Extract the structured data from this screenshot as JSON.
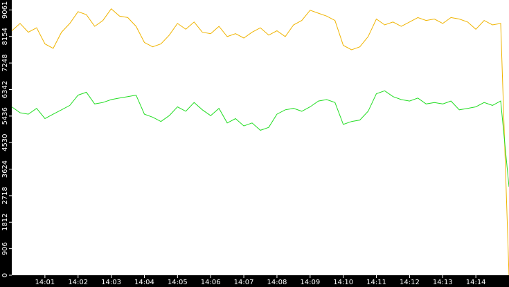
{
  "chart_data": {
    "type": "line",
    "x": [
      0,
      0.25,
      0.5,
      0.75,
      1,
      1.25,
      1.5,
      1.75,
      2,
      2.25,
      2.5,
      2.75,
      3,
      3.25,
      3.5,
      3.75,
      4,
      4.25,
      4.5,
      4.75,
      5,
      5.25,
      5.5,
      5.75,
      6,
      6.25,
      6.5,
      6.75,
      7,
      7.25,
      7.5,
      7.75,
      8,
      8.25,
      8.5,
      8.75,
      9,
      9.25,
      9.5,
      9.75,
      10,
      10.25,
      10.5,
      10.75,
      11,
      11.25,
      11.5,
      11.75,
      12,
      12.25,
      12.5,
      12.75,
      13,
      13.25,
      13.5,
      13.75,
      14,
      14.25,
      14.5,
      14.75,
      15
    ],
    "series": [
      {
        "color": "#f0b400",
        "values": [
          8350,
          8600,
          8300,
          8450,
          7900,
          7750,
          8300,
          8600,
          9000,
          8900,
          8500,
          8700,
          9100,
          8850,
          8800,
          8500,
          7950,
          7800,
          7900,
          8200,
          8600,
          8400,
          8650,
          8300,
          8250,
          8500,
          8150,
          8250,
          8100,
          8300,
          8450,
          8200,
          8350,
          8150,
          8550,
          8700,
          9050,
          8950,
          8850,
          8700,
          7850,
          7700,
          7800,
          8150,
          8750,
          8550,
          8650,
          8500,
          8650,
          8800,
          8700,
          8750,
          8600,
          8800,
          8750,
          8650,
          8400,
          8700,
          8550,
          8600,
          0
        ]
      },
      {
        "color": "#22dd22",
        "values": [
          5750,
          5550,
          5500,
          5700,
          5350,
          5500,
          5650,
          5800,
          6150,
          6250,
          5850,
          5900,
          6000,
          6050,
          6100,
          6150,
          5500,
          5400,
          5250,
          5450,
          5750,
          5600,
          5900,
          5650,
          5450,
          5700,
          5200,
          5350,
          5100,
          5200,
          4950,
          5050,
          5500,
          5650,
          5700,
          5600,
          5750,
          5950,
          6000,
          5900,
          5150,
          5250,
          5300,
          5600,
          6200,
          6300,
          6100,
          6000,
          5950,
          6050,
          5850,
          5900,
          5850,
          5950,
          5650,
          5700,
          5750,
          5900,
          5800,
          5950,
          3020
        ]
      }
    ],
    "xlim": [
      0,
      15
    ],
    "xticks": [
      {
        "value": 1,
        "label": "14:01"
      },
      {
        "value": 2,
        "label": "14:02"
      },
      {
        "value": 3,
        "label": "14:03"
      },
      {
        "value": 4,
        "label": "14:04"
      },
      {
        "value": 5,
        "label": "14:05"
      },
      {
        "value": 6,
        "label": "14:06"
      },
      {
        "value": 7,
        "label": "14:07"
      },
      {
        "value": 8,
        "label": "14:08"
      },
      {
        "value": 9,
        "label": "14:09"
      },
      {
        "value": 10,
        "label": "14:10"
      },
      {
        "value": 11,
        "label": "14:11"
      },
      {
        "value": 12,
        "label": "14:12"
      },
      {
        "value": 13,
        "label": "14:13"
      },
      {
        "value": 14,
        "label": "14:14"
      }
    ],
    "ylim": [
      0,
      9400
    ],
    "yticks": [
      0,
      906,
      1812,
      2718,
      3624,
      4530,
      5436,
      6342,
      7248,
      8154,
      9061
    ]
  }
}
